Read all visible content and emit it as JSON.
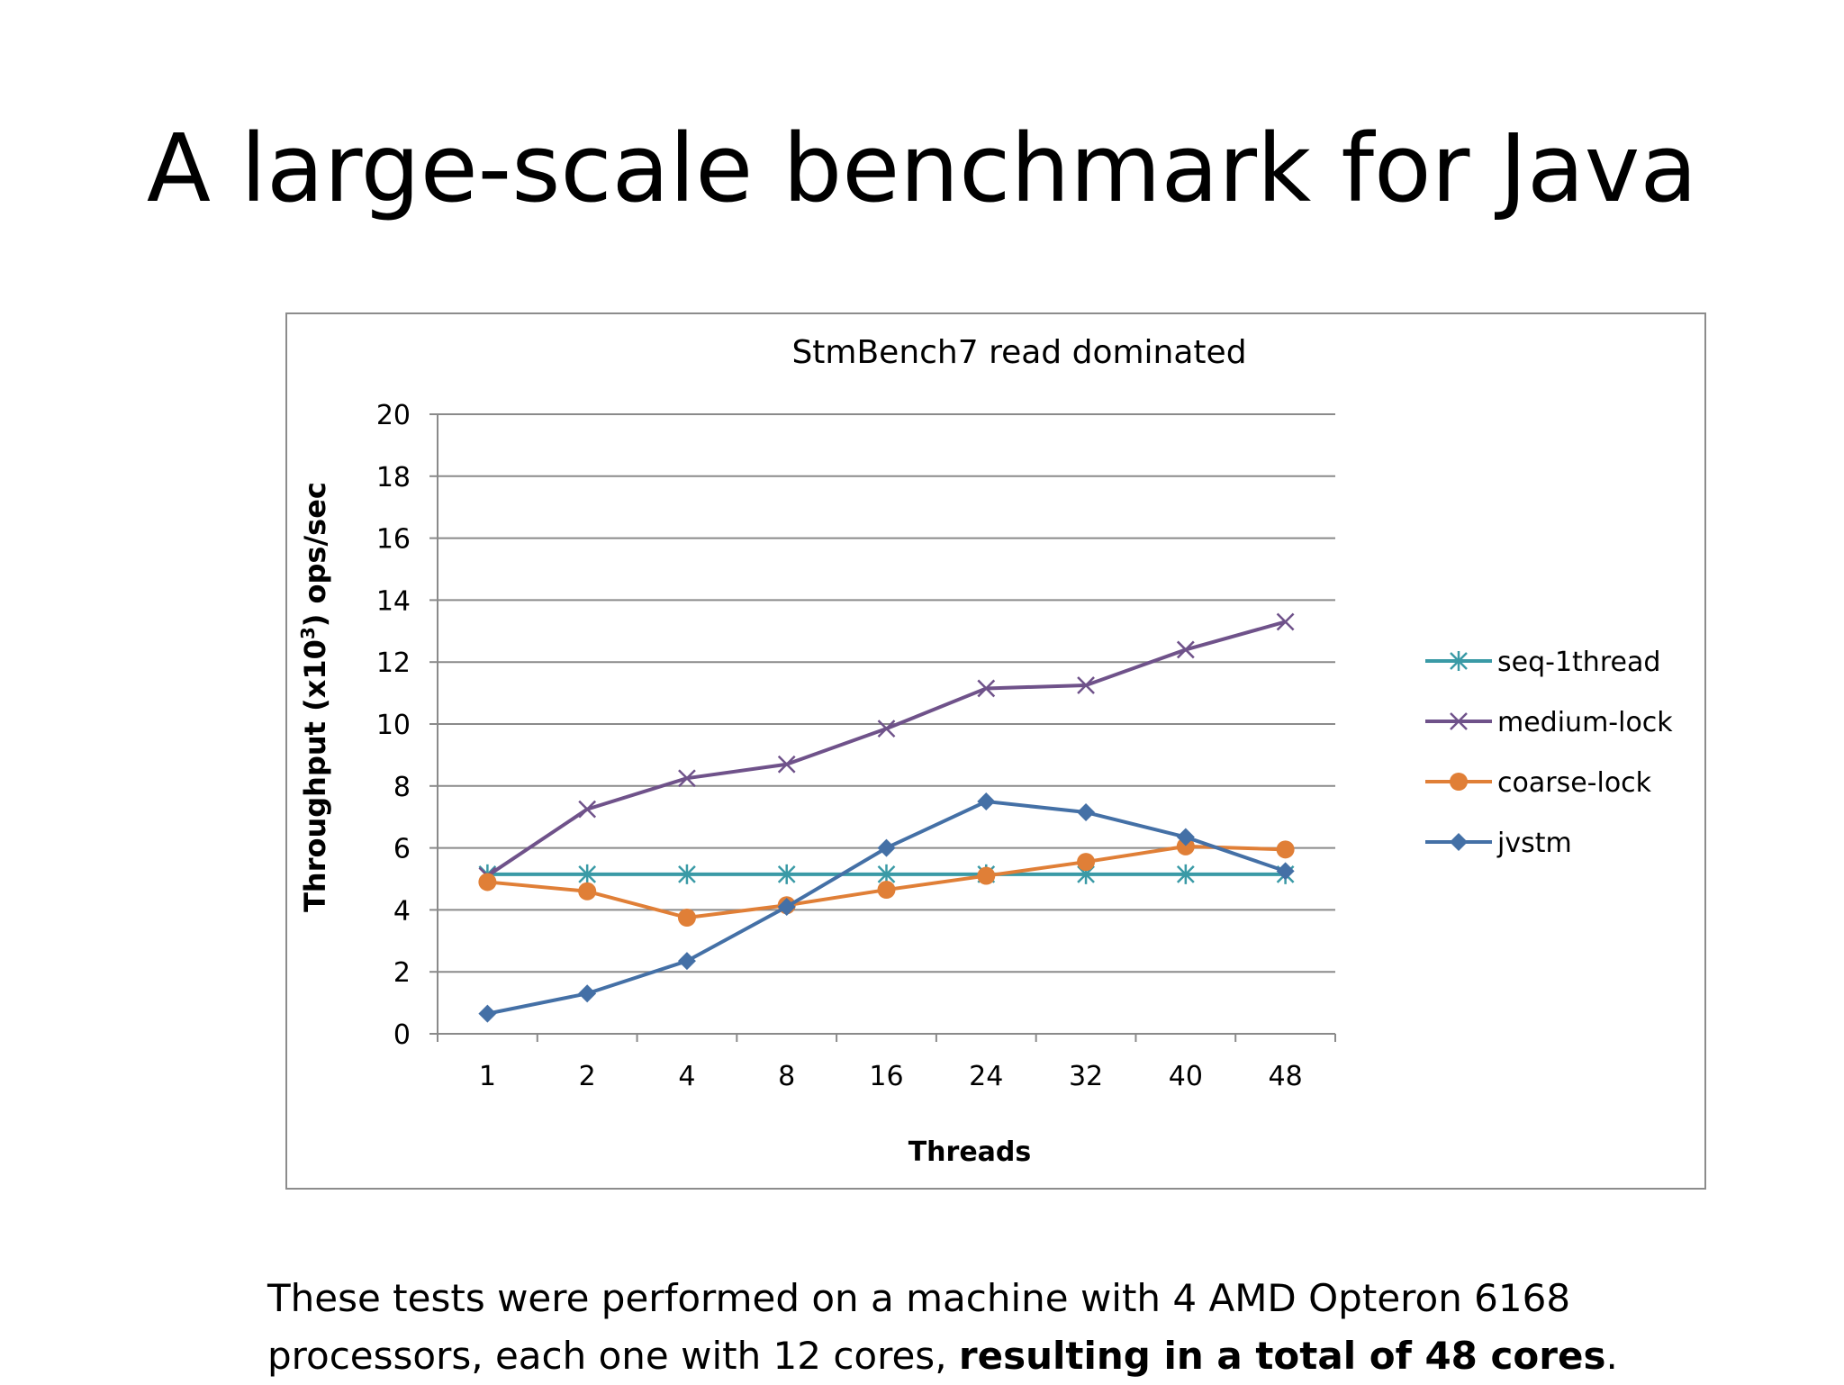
{
  "slide": {
    "title": "A large-scale benchmark for Java",
    "footnote_plain": "These tests were performed on a machine with 4 AMD Opteron 6168 processors, each one with 12 cores, ",
    "footnote_bold": "resulting in a total of 48 cores",
    "footnote_end": "."
  },
  "chart_data": {
    "type": "line",
    "title": "StmBench7 read dominated",
    "xlabel": "Threads",
    "ylabel_prefix": "Throughput (x10",
    "ylabel_sup": "3",
    "ylabel_suffix": ") ops/sec",
    "categories": [
      "1",
      "2",
      "4",
      "8",
      "16",
      "24",
      "32",
      "40",
      "48"
    ],
    "ylim": [
      0,
      20
    ],
    "yticks": [
      "0",
      "2",
      "4",
      "6",
      "8",
      "10",
      "12",
      "14",
      "16",
      "18",
      "20"
    ],
    "grid": true,
    "legend_position": "right",
    "series": [
      {
        "name": "seq-1thread",
        "color": "#3a9aa6",
        "marker": "asterisk",
        "values": [
          5.15,
          5.15,
          5.15,
          5.15,
          5.15,
          5.15,
          5.15,
          5.15,
          5.15
        ]
      },
      {
        "name": "medium-lock",
        "color": "#6f528a",
        "marker": "x",
        "values": [
          5.1,
          7.25,
          8.25,
          8.7,
          9.85,
          11.15,
          11.25,
          12.4,
          13.3
        ]
      },
      {
        "name": "coarse-lock",
        "color": "#e07f37",
        "marker": "circle",
        "values": [
          4.9,
          4.6,
          3.75,
          4.15,
          4.65,
          5.1,
          5.55,
          6.05,
          5.95
        ]
      },
      {
        "name": "jvstm",
        "color": "#4470a6",
        "marker": "diamond",
        "values": [
          0.65,
          1.3,
          2.35,
          4.1,
          6.0,
          7.5,
          7.15,
          6.35,
          5.25
        ]
      }
    ]
  }
}
